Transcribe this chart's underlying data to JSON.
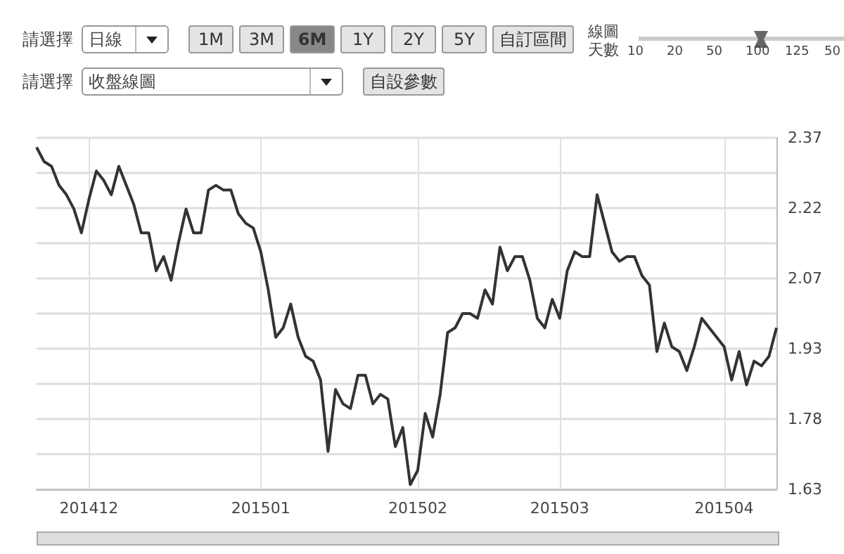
{
  "chart_data": {
    "type": "line",
    "annotations": [
      "請選擇",
      "日線",
      "1M",
      "3M",
      "6M",
      "1Y",
      "2Y",
      "5Y",
      "自訂區間",
      "請選擇",
      "收盤線圖",
      "自設參數",
      "線圖天數",
      "10",
      "20",
      "50",
      "100",
      "125",
      "50"
    ],
    "categories": [
      null,
      null,
      null,
      null,
      null,
      null,
      null,
      "201412",
      null,
      null,
      null,
      null,
      null,
      null,
      null,
      null,
      null,
      null,
      null,
      null,
      null,
      null,
      null,
      null,
      null,
      null,
      null,
      null,
      null,
      null,
      "201501",
      null,
      null,
      null,
      null,
      null,
      null,
      null,
      null,
      null,
      null,
      null,
      null,
      null,
      null,
      null,
      null,
      null,
      null,
      null,
      null,
      "201502",
      null,
      null,
      null,
      null,
      null,
      null,
      null,
      null,
      null,
      null,
      null,
      null,
      null,
      null,
      null,
      null,
      null,
      null,
      "201503",
      null,
      null,
      null,
      null,
      null,
      null,
      null,
      null,
      null,
      null,
      null,
      null,
      null,
      null,
      null,
      null,
      null,
      null,
      null,
      null,
      null,
      "201504",
      null,
      null,
      null,
      null,
      null,
      null,
      null
    ],
    "series": [
      {
        "color": "#333333",
        "values": [
          2.35,
          2.32,
          2.31,
          2.27,
          2.25,
          2.22,
          2.17,
          2.24,
          2.3,
          2.28,
          2.25,
          2.31,
          2.27,
          2.23,
          2.17,
          2.17,
          2.09,
          2.12,
          2.07,
          2.15,
          2.22,
          2.17,
          2.17,
          2.26,
          2.27,
          2.26,
          2.26,
          2.21,
          2.19,
          2.18,
          2.13,
          2.05,
          1.95,
          1.97,
          2.02,
          1.95,
          1.91,
          1.9,
          1.86,
          1.71,
          1.84,
          1.81,
          1.8,
          1.87,
          1.87,
          1.81,
          1.83,
          1.82,
          1.72,
          1.76,
          1.64,
          1.67,
          1.79,
          1.74,
          1.83,
          1.96,
          1.97,
          2.0,
          2.0,
          1.99,
          2.05,
          2.02,
          2.14,
          2.09,
          2.12,
          2.12,
          2.07,
          1.99,
          1.97,
          2.03,
          1.99,
          2.09,
          2.13,
          2.12,
          2.12,
          2.25,
          2.19,
          2.13,
          2.11,
          2.12,
          2.12,
          2.08,
          2.06,
          1.92,
          1.98,
          1.93,
          1.92,
          1.88,
          1.93,
          1.99,
          1.97,
          1.95,
          1.93,
          1.86,
          1.92,
          1.85,
          1.9,
          1.89,
          1.91,
          1.97
        ]
      }
    ],
    "ylim": [
      1.63,
      2.37
    ],
    "yticks": [
      {
        "value": 1.63,
        "label": "1.63"
      },
      {
        "value": 1.704,
        "label": null
      },
      {
        "value": 1.778,
        "label": "1.78"
      },
      {
        "value": 1.852,
        "label": null
      },
      {
        "value": 1.926,
        "label": "1.93"
      },
      {
        "value": 2.0,
        "label": null
      },
      {
        "value": 2.074,
        "label": "2.07"
      },
      {
        "value": 2.148,
        "label": null
      },
      {
        "value": 2.222,
        "label": "2.22"
      },
      {
        "value": 2.296,
        "label": null
      },
      {
        "value": 2.37,
        "label": "2.37"
      }
    ],
    "grid": true,
    "marker": "none",
    "line_style": "solid"
  }
}
